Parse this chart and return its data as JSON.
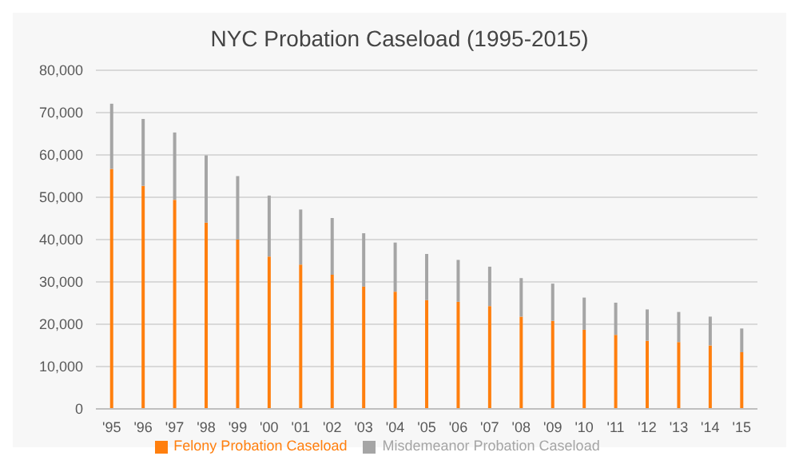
{
  "chart_data": {
    "type": "bar",
    "title": "NYC Probation Caseload (1995-2015)",
    "stacked": true,
    "categories": [
      "'95",
      "'96",
      "'97",
      "'98",
      "'99",
      "'00",
      "'01",
      "'02",
      "'03",
      "'04",
      "'05",
      "'06",
      "'07",
      "'08",
      "'09",
      "'10",
      "'11",
      "'12",
      "'13",
      "'14",
      "'15"
    ],
    "series": [
      {
        "name": "Felony Probation Caseload",
        "color": "#ff7f0e",
        "values": [
          56700,
          52700,
          49400,
          44000,
          40000,
          36000,
          34100,
          31700,
          28900,
          27700,
          25700,
          25300,
          24300,
          21800,
          20800,
          18700,
          17500,
          16100,
          15800,
          15000,
          13400
        ]
      },
      {
        "name": "Misdemeanor Probation Caseload",
        "color": "#a5a5a5",
        "values": [
          15400,
          15800,
          15900,
          15900,
          15000,
          14400,
          13000,
          13400,
          12600,
          11600,
          10900,
          9900,
          9300,
          9100,
          8800,
          7600,
          7600,
          7400,
          7100,
          6800,
          5600
        ]
      }
    ],
    "ylim": [
      0,
      80000
    ],
    "yticks": [
      {
        "value": 0,
        "label": "0"
      },
      {
        "value": 10000,
        "label": "10,000"
      },
      {
        "value": 20000,
        "label": "20,000"
      },
      {
        "value": 30000,
        "label": "30,000"
      },
      {
        "value": 40000,
        "label": "40,000"
      },
      {
        "value": 50000,
        "label": "50,000"
      },
      {
        "value": 60000,
        "label": "60,000"
      },
      {
        "value": 70000,
        "label": "70,000"
      },
      {
        "value": 80000,
        "label": "80,000"
      }
    ],
    "grid": "y",
    "legend": "bottom"
  }
}
